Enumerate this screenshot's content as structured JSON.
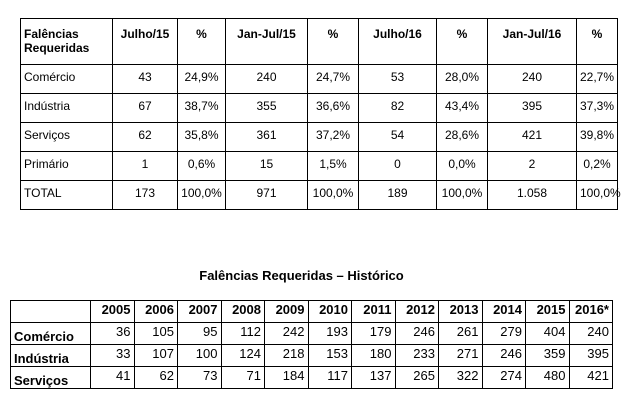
{
  "table1": {
    "header": [
      "Falências Requeridas",
      "Julho/15",
      "%",
      "Jan-Jul/15",
      "%",
      "Julho/16",
      "%",
      "Jan-Jul/16",
      "%"
    ],
    "rows": [
      [
        "Comércio",
        "43",
        "24,9%",
        "240",
        "24,7%",
        "53",
        "28,0%",
        "240",
        "22,7%"
      ],
      [
        "Indústria",
        "67",
        "38,7%",
        "355",
        "36,6%",
        "82",
        "43,4%",
        "395",
        "37,3%"
      ],
      [
        "Serviços",
        "62",
        "35,8%",
        "361",
        "37,2%",
        "54",
        "28,6%",
        "421",
        "39,8%"
      ],
      [
        "Primário",
        "1",
        "0,6%",
        "15",
        "1,5%",
        "0",
        "0,0%",
        "2",
        "0,2%"
      ],
      [
        "TOTAL",
        "173",
        "100,0%",
        "971",
        "100,0%",
        "189",
        "100,0%",
        "1.058",
        "100,0%"
      ]
    ]
  },
  "table2": {
    "title": "Falências Requeridas – Histórico",
    "header": [
      "2005",
      "2006",
      "2007",
      "2008",
      "2009",
      "2010",
      "2011",
      "2012",
      "2013",
      "2014",
      "2015",
      "2016*"
    ],
    "rows": [
      {
        "label": "Comércio",
        "values": [
          "36",
          "105",
          "95",
          "112",
          "242",
          "193",
          "179",
          "246",
          "261",
          "279",
          "404",
          "240"
        ]
      },
      {
        "label": "Indústria",
        "values": [
          "33",
          "107",
          "100",
          "124",
          "218",
          "153",
          "180",
          "233",
          "271",
          "246",
          "359",
          "395"
        ]
      },
      {
        "label": "Serviços",
        "values": [
          "41",
          "62",
          "73",
          "71",
          "184",
          "117",
          "137",
          "265",
          "322",
          "274",
          "480",
          "421"
        ]
      }
    ]
  }
}
